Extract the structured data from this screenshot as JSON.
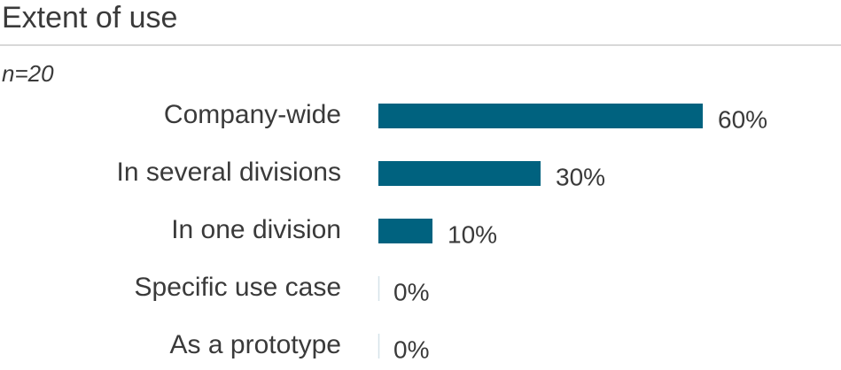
{
  "chart_data": {
    "type": "bar",
    "orientation": "horizontal",
    "title": "Extent of use",
    "subtitle": "n=20",
    "categories": [
      "Company-wide",
      "In several divisions",
      "In one division",
      "Specific use case",
      "As a prototype"
    ],
    "values": [
      60,
      30,
      10,
      0,
      0
    ],
    "value_labels": [
      "60%",
      "30%",
      "10%",
      "0%",
      "0%"
    ],
    "color": "#00627f"
  }
}
